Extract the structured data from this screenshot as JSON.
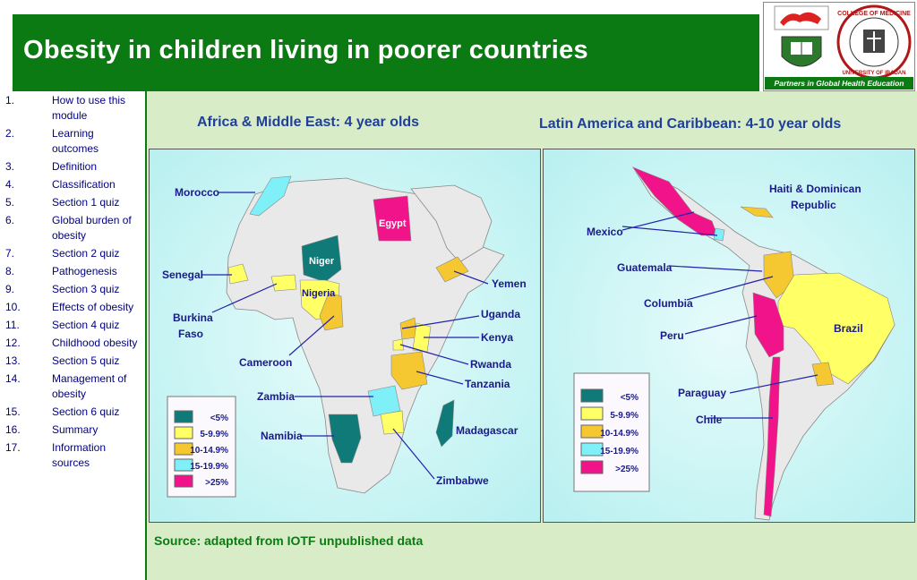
{
  "header": {
    "title": "Obesity in children living in poorer countries"
  },
  "logos": {
    "tagline": "Partners in Global Health Education",
    "seal_text": "COLLEGE OF MEDICINE UNIVERSITY OF IBADAN"
  },
  "sidebar": {
    "items": [
      {
        "num": "1.",
        "label": "How to use this module"
      },
      {
        "num": "2.",
        "label": "Learning outcomes"
      },
      {
        "num": "3.",
        "label": "Definition"
      },
      {
        "num": "4.",
        "label": "Classification"
      },
      {
        "num": "5.",
        "label": "Section 1 quiz"
      },
      {
        "num": "6.",
        "label": "Global burden of obesity"
      },
      {
        "num": "7.",
        "label": "Section 2 quiz"
      },
      {
        "num": "8.",
        "label": "Pathogenesis"
      },
      {
        "num": "9.",
        "label": "Section 3 quiz"
      },
      {
        "num": "10.",
        "label": "Effects of obesity"
      },
      {
        "num": "11.",
        "label": "Section 4 quiz"
      },
      {
        "num": "12.",
        "label": "Childhood obesity"
      },
      {
        "num": "13.",
        "label": "Section 5 quiz"
      },
      {
        "num": "14.",
        "label": "Management of obesity"
      },
      {
        "num": "15.",
        "label": "Section 6 quiz"
      },
      {
        "num": "16.",
        "label": "Summary"
      },
      {
        "num": "17.",
        "label": "Information sources"
      }
    ]
  },
  "africa": {
    "title": "Africa & Middle East: 4 year olds",
    "labels": {
      "morocco": "Morocco",
      "egypt": "Egypt",
      "niger": "Niger",
      "nigeria": "Nigeria",
      "senegal": "Senegal",
      "burkina1": "Burkina",
      "burkina2": "Faso",
      "yemen": "Yemen",
      "uganda": "Uganda",
      "kenya": "Kenya",
      "cameroon": "Cameroon",
      "rwanda": "Rwanda",
      "tanzania": "Tanzania",
      "zambia": "Zambia",
      "madagascar": "Madagascar",
      "namibia": "Namibia",
      "zimbabwe": "Zimbabwe"
    }
  },
  "latam": {
    "title": "Latin America and Caribbean: 4-10 year olds",
    "labels": {
      "haiti1": "Haiti & Dominican",
      "haiti2": "Republic",
      "mexico": "Mexico",
      "guatemala": "Guatemala",
      "columbia": "Columbia",
      "peru": "Peru",
      "brazil": "Brazil",
      "paraguay": "Paraguay",
      "chile": "Chile"
    }
  },
  "legend": [
    {
      "label": "<5%",
      "color": "#0f7a78"
    },
    {
      "label": "5-9.9%",
      "color": "#ffff66"
    },
    {
      "label": "10-14.9%",
      "color": "#f5c832"
    },
    {
      "label": "15-19.9%",
      "color": "#80f0f8"
    },
    {
      "label": ">25%",
      "color": "#f0138a"
    }
  ],
  "source": "Source:  adapted from IOTF unpublished data",
  "colors": {
    "header_green": "#0b7a12",
    "label_blue": "#1a1a8c",
    "land_grey": "#e9e9e9"
  }
}
